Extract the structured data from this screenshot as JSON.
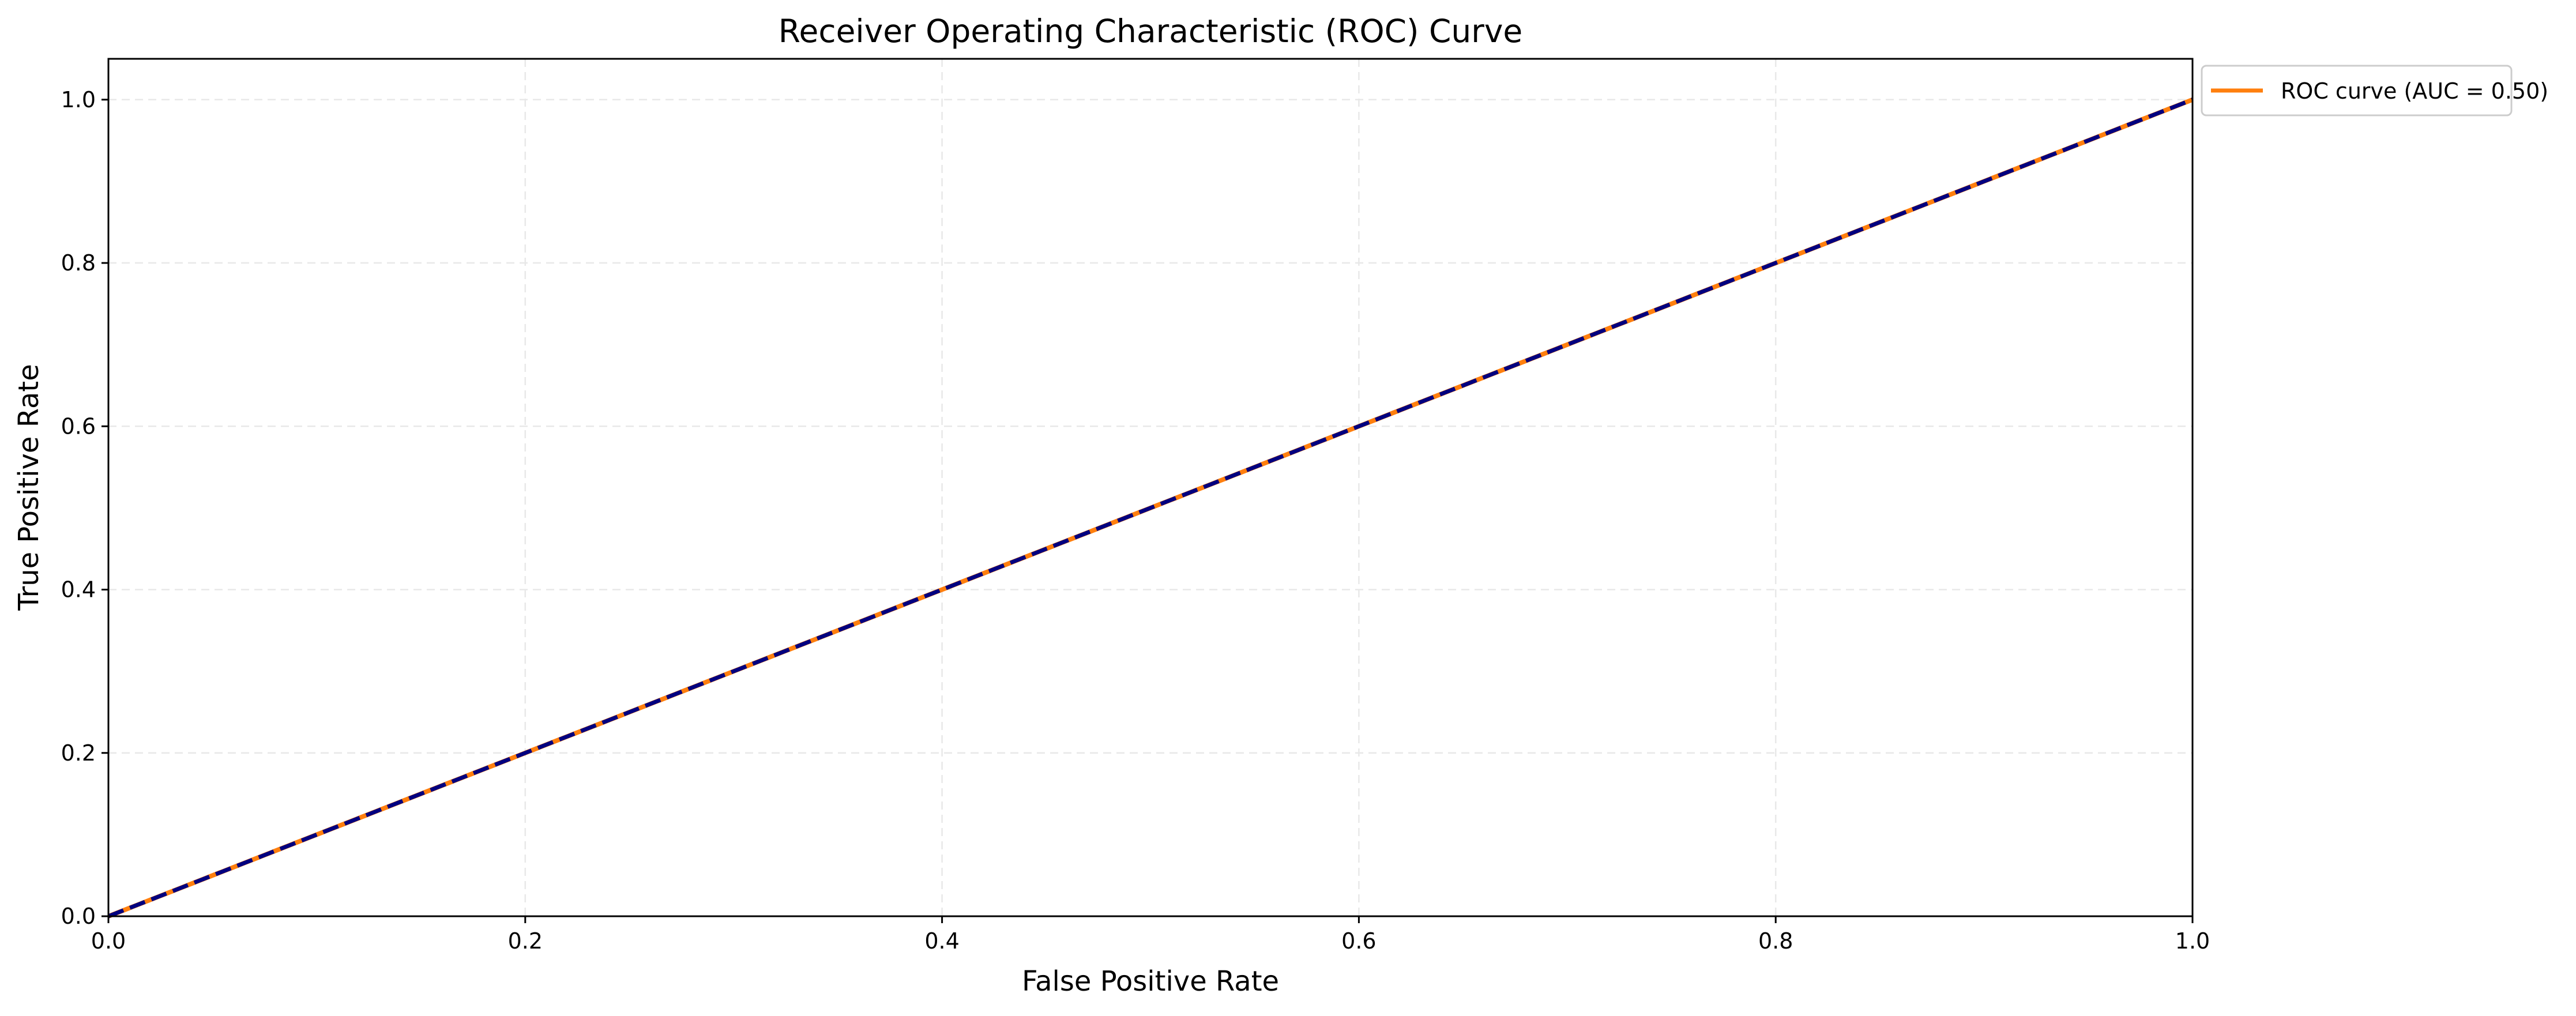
{
  "chart_data": {
    "type": "line",
    "title": "Receiver Operating Characteristic (ROC) Curve",
    "xlabel": "False Positive Rate",
    "ylabel": "True Positive Rate",
    "xlim": [
      0.0,
      1.0
    ],
    "ylim": [
      0.0,
      1.05
    ],
    "xticks": [
      0.0,
      0.2,
      0.4,
      0.6,
      0.8,
      1.0
    ],
    "yticks": [
      0.0,
      0.2,
      0.4,
      0.6,
      0.8,
      1.0
    ],
    "xtick_labels": [
      "0.0",
      "0.2",
      "0.4",
      "0.6",
      "0.8",
      "1.0"
    ],
    "ytick_labels": [
      "0.0",
      "0.2",
      "0.4",
      "0.6",
      "0.8",
      "1.0"
    ],
    "grid": true,
    "legend_position": "outside-top-right",
    "series": [
      {
        "name": "ROC curve (AUC = 0.50)",
        "style": "solid",
        "color": "#ff7f0e",
        "x": [
          0.0,
          1.0
        ],
        "y": [
          0.0,
          1.0
        ]
      },
      {
        "style": "dashed",
        "color": "#000080",
        "x": [
          0.0,
          1.0
        ],
        "y": [
          0.0,
          1.0
        ]
      }
    ]
  }
}
